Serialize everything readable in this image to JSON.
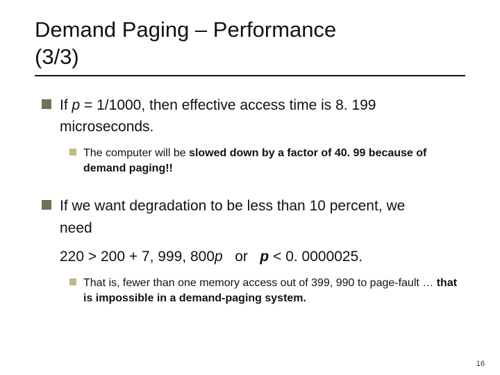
{
  "title_line1": "Demand Paging – Performance",
  "title_line2": "(3/3)",
  "b1_prefix": "If ",
  "b1_p": "p ",
  "b1_rest": "= 1/1000, then effective access time is 8. 199",
  "b1_cont": "microseconds.",
  "b1_sub_pre": "The computer will be ",
  "b1_sub_bold": "slowed down by a factor of 40. 99 because of demand paging!!",
  "b2_line1": "If we want degradation to be less than 10 percent, we",
  "b2_cont1": "need",
  "b2_cont2_a": "220 > 200 + 7, 999, 800",
  "b2_cont2_p1": "p",
  "b2_cont2_or": "   or   ",
  "b2_cont2_p2": "p ",
  "b2_cont2_rest": "< 0. 0000025.",
  "b2_sub_pre": "That is, fewer than one memory access out of 399, 990 to page-fault … ",
  "b2_sub_bold": "that is impossible in a demand-paging system.",
  "page_number": "16",
  "colors": {
    "marker_l1": "#707256",
    "marker_l2": "#bfb97f",
    "text": "#111111",
    "background": "#ffffff"
  }
}
